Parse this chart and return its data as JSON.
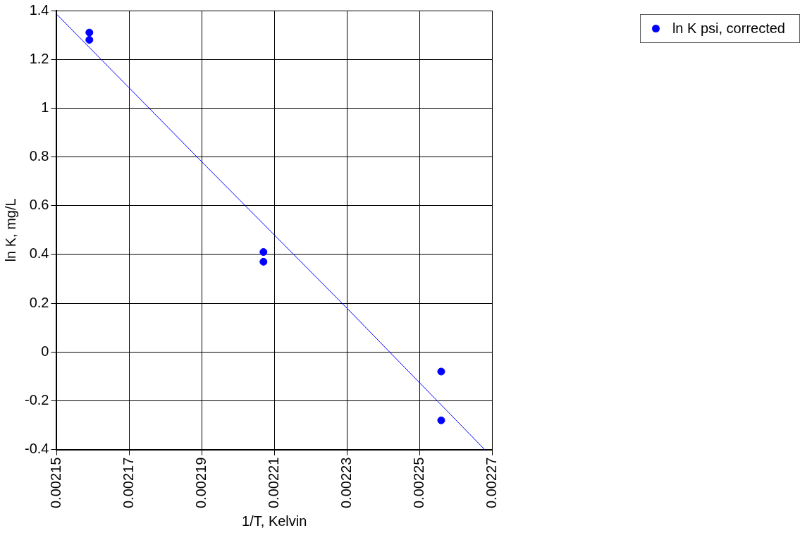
{
  "chart_data": {
    "type": "scatter",
    "xlabel": "1/T, Kelvin",
    "ylabel": "ln K, mg/L",
    "xlim": [
      0.00215,
      0.00227
    ],
    "xticks": [
      0.00215,
      0.00217,
      0.00219,
      0.00221,
      0.00223,
      0.00225,
      0.00227
    ],
    "ylim": [
      -0.4,
      1.4
    ],
    "yticks": [
      -0.4,
      -0.2,
      0,
      0.2,
      0.4,
      0.6,
      0.8,
      1,
      1.2,
      1.4
    ],
    "grid": true,
    "legend": "top right",
    "marker": "circle",
    "series": [
      {
        "name": "ln K psi, corrected",
        "color": "#0000ff",
        "x": [
          0.002159,
          0.002159,
          0.002207,
          0.002207,
          0.002256,
          0.002256
        ],
        "values": [
          1.31,
          1.28,
          0.41,
          0.37,
          -0.08,
          -0.28
        ]
      },
      {
        "type": "line",
        "color": "#0000ff",
        "marker": "none",
        "x": [
          0.00215,
          0.00219,
          0.00223,
          0.002268
        ],
        "values": [
          1.385,
          0.78,
          0.18,
          -0.4
        ]
      }
    ]
  }
}
